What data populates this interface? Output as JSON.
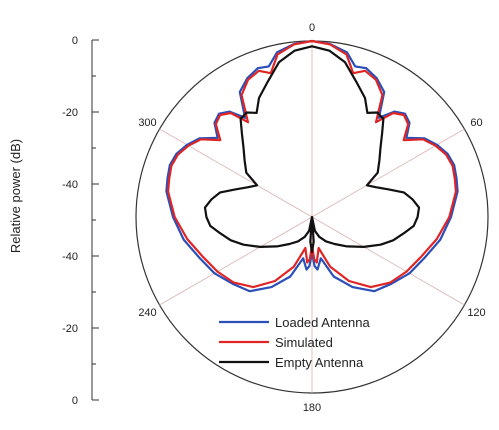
{
  "chart_data": {
    "type": "polar-line",
    "title": "",
    "ylabel": "Relative power (dB)",
    "radial_axis": {
      "range_db": [
        -50,
        0
      ],
      "tick_labels": [
        "0",
        "-20",
        "-40",
        "-40",
        "-20",
        "0"
      ]
    },
    "angle_labels": [
      {
        "deg": 0,
        "text": "0"
      },
      {
        "deg": 60,
        "text": "60"
      },
      {
        "deg": 120,
        "text": "120"
      },
      {
        "deg": 180,
        "text": "180"
      },
      {
        "deg": 240,
        "text": "240"
      },
      {
        "deg": 300,
        "text": "300"
      }
    ],
    "grid_spokes_deg": [
      0,
      60,
      120,
      180,
      240,
      300
    ],
    "legend_position": "bottom-center",
    "series": [
      {
        "name": "Loaded Antenna",
        "color": "#2b4fb8",
        "angles": [
          0,
          6,
          12,
          16,
          20,
          25,
          30,
          34,
          38,
          42,
          46,
          50,
          55,
          60,
          65,
          70,
          75,
          80,
          90,
          100,
          110,
          120,
          130,
          140,
          150,
          160,
          168,
          174,
          177,
          180
        ],
        "values": [
          0,
          -0.6,
          -2.2,
          -5.5,
          -5,
          -6.5,
          -9,
          -16,
          -12,
          -10.5,
          -11.5,
          -15,
          -11,
          -9,
          -7.5,
          -7,
          -7.5,
          -8,
          -10.5,
          -13,
          -16,
          -18,
          -20.5,
          -22.5,
          -27,
          -32,
          -38,
          -35,
          -36,
          -40
        ]
      },
      {
        "name": "Simulated",
        "color": "#e02525",
        "angles": [
          0,
          6,
          12,
          16,
          20,
          25,
          30,
          34,
          38,
          42,
          46,
          50,
          55,
          60,
          65,
          70,
          75,
          80,
          90,
          100,
          110,
          120,
          130,
          140,
          150,
          160,
          168,
          174,
          177,
          180
        ],
        "values": [
          0,
          -0.7,
          -2.8,
          -7.5,
          -5.8,
          -7,
          -10,
          -17.5,
          -12.5,
          -11,
          -12,
          -16,
          -11.5,
          -9.5,
          -8,
          -7.5,
          -8,
          -8.5,
          -11,
          -14,
          -17,
          -19,
          -21,
          -24,
          -29,
          -35,
          -41,
          -37,
          -38,
          -42
        ]
      },
      {
        "name": "Empty Antenna",
        "color": "#111111",
        "angles": [
          0,
          6,
          12,
          18,
          24,
          28,
          32,
          36,
          40,
          45,
          50,
          56,
          60,
          65,
          70,
          75,
          80,
          85,
          90,
          95,
          100,
          106,
          112,
          120,
          130,
          140,
          150,
          160,
          168,
          172,
          176,
          180
        ],
        "values": [
          -1.5,
          -2.5,
          -5,
          -9.5,
          -13,
          -16.5,
          -15,
          -15.5,
          -19,
          -22.5,
          -25,
          -27.5,
          -32,
          -30,
          -27,
          -23,
          -21,
          -19.5,
          -20,
          -21,
          -23.5,
          -26,
          -29,
          -33,
          -37,
          -40,
          -42,
          -44,
          -46,
          -50,
          -43,
          -40
        ]
      }
    ]
  }
}
